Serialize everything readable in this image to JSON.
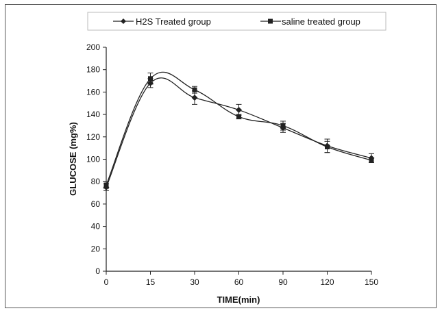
{
  "chart_data": {
    "type": "line",
    "title": "",
    "xlabel": "TIME(min)",
    "ylabel": "GLUCOSE (mg%)",
    "x": [
      0,
      15,
      30,
      60,
      90,
      120,
      150
    ],
    "x_tick_labels": [
      "0",
      "15",
      "30",
      "60",
      "90",
      "120",
      "150"
    ],
    "y_ticks": [
      0,
      20,
      40,
      60,
      80,
      100,
      120,
      140,
      160,
      180,
      200
    ],
    "ylim": [
      0,
      200
    ],
    "grid": false,
    "legend_position": "top",
    "series": [
      {
        "name": "H2S Treated group",
        "marker": "diamond",
        "values": [
          75,
          168,
          155,
          144,
          128,
          112,
          101
        ],
        "error": [
          3,
          4,
          6,
          5,
          4,
          6,
          4
        ]
      },
      {
        "name": "saline treated group",
        "marker": "square",
        "values": [
          77,
          172,
          162,
          138,
          130,
          111,
          99
        ],
        "error": [
          3,
          5,
          3,
          2,
          4,
          5,
          2
        ]
      }
    ]
  }
}
